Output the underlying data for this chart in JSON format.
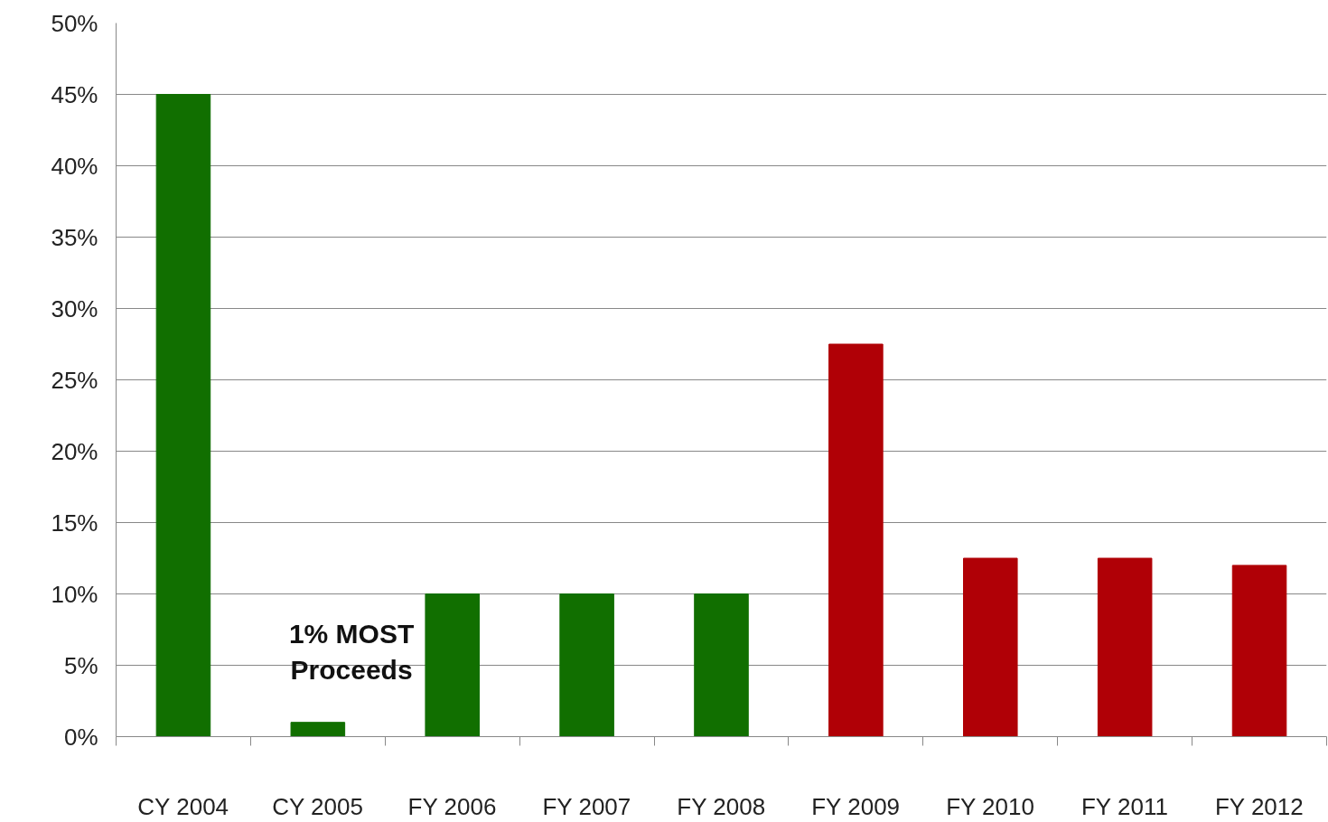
{
  "chart_data": {
    "type": "bar",
    "categories": [
      "CY 2004",
      "CY 2005",
      "FY 2006",
      "FY 2007",
      "FY 2008",
      "FY 2009",
      "FY 2010",
      "FY 2011",
      "FY 2012"
    ],
    "values": [
      45,
      1,
      10,
      10,
      10,
      27.5,
      12.5,
      12.5,
      12
    ],
    "colors": [
      "#116f00",
      "#116f00",
      "#116f00",
      "#116f00",
      "#116f00",
      "#b00006",
      "#b00006",
      "#b00006",
      "#b00006"
    ],
    "ylim": [
      0,
      50
    ],
    "yticks": [
      {
        "value": 0,
        "label": "0%"
      },
      {
        "value": 5,
        "label": "5%"
      },
      {
        "value": 10,
        "label": "10%"
      },
      {
        "value": 15,
        "label": "15%"
      },
      {
        "value": 20,
        "label": "20%"
      },
      {
        "value": 25,
        "label": "25%"
      },
      {
        "value": 30,
        "label": "30%"
      },
      {
        "value": 35,
        "label": "35%"
      },
      {
        "value": 40,
        "label": "40%"
      },
      {
        "value": 45,
        "label": "45%"
      },
      {
        "value": 50,
        "label": "50%"
      }
    ],
    "grid": "y",
    "annotations": [
      {
        "text": "1% MOST\nProceeds",
        "x": "CY 2005",
        "y": 1
      }
    ]
  }
}
